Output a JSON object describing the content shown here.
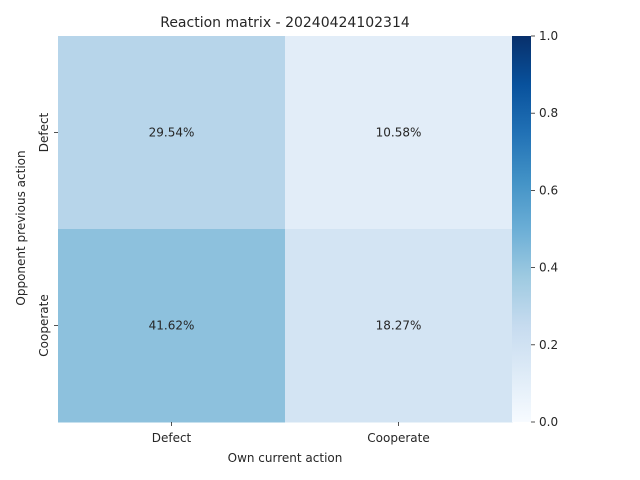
{
  "chart_data": {
    "type": "heatmap",
    "title": "Reaction matrix - 20240424102314",
    "xlabel": "Own current action",
    "ylabel": "Opponent previous action",
    "x_categories": [
      "Defect",
      "Cooperate"
    ],
    "y_categories": [
      "Defect",
      "Cooperate"
    ],
    "values": [
      [
        0.2954,
        0.1058
      ],
      [
        0.4162,
        0.1827
      ]
    ],
    "cell_labels": [
      [
        "29.54%",
        "10.58%"
      ],
      [
        "41.62%",
        "18.27%"
      ]
    ],
    "colorbar": {
      "range": [
        0,
        1
      ],
      "ticks": [
        "0.0",
        "0.2",
        "0.4",
        "0.6",
        "0.8",
        "1.0"
      ],
      "colormap": "Blues"
    }
  }
}
